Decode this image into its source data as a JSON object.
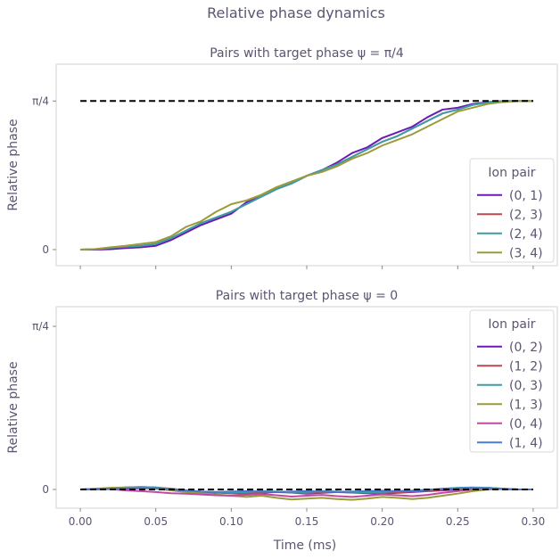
{
  "figure": {
    "suptitle": "Relative phase dynamics",
    "xlabel": "Time (ms)"
  },
  "chart_data": [
    {
      "type": "line",
      "title": "Pairs with target phase ψ = π/4",
      "ylabel": "Relative phase",
      "xlim": [
        -0.016,
        0.316
      ],
      "ylim": [
        -0.085,
        0.98
      ],
      "yticks": [
        {
          "value": 0,
          "label": "0"
        },
        {
          "value": 0.7854,
          "label": "π/4"
        }
      ],
      "xticks": [
        0.0,
        0.05,
        0.1,
        0.15,
        0.2,
        0.25,
        0.3
      ],
      "show_xticklabels": false,
      "target": {
        "value": 0.7854,
        "x": [
          0.0,
          0.3
        ],
        "style": "dashed",
        "color": "#000000"
      },
      "legend": {
        "title": "Ion pair",
        "position": "lower-right"
      },
      "x": [
        0.0,
        0.01,
        0.02,
        0.03,
        0.04,
        0.05,
        0.06,
        0.07,
        0.08,
        0.09,
        0.1,
        0.11,
        0.12,
        0.13,
        0.14,
        0.15,
        0.16,
        0.17,
        0.18,
        0.19,
        0.2,
        0.21,
        0.22,
        0.23,
        0.24,
        0.25,
        0.26,
        0.27,
        0.28,
        0.29,
        0.3
      ],
      "series": [
        {
          "name": "(0, 1)",
          "color": "#6a1bb5",
          "values": [
            0.0,
            0.0,
            0.002,
            0.008,
            0.012,
            0.02,
            0.05,
            0.09,
            0.13,
            0.16,
            0.19,
            0.25,
            0.28,
            0.32,
            0.35,
            0.39,
            0.42,
            0.46,
            0.51,
            0.54,
            0.59,
            0.62,
            0.65,
            0.7,
            0.74,
            0.75,
            0.77,
            0.78,
            0.785,
            0.785,
            0.785
          ]
        },
        {
          "name": "(2, 3)",
          "color": "#b84a52",
          "values": [
            0.0,
            0.002,
            0.01,
            0.015,
            0.02,
            0.03,
            0.06,
            0.1,
            0.14,
            0.17,
            0.2,
            0.24,
            0.28,
            0.32,
            0.35,
            0.39,
            0.42,
            0.45,
            0.49,
            0.53,
            0.57,
            0.6,
            0.64,
            0.68,
            0.72,
            0.74,
            0.765,
            0.778,
            0.785,
            0.785,
            0.785
          ]
        },
        {
          "name": "(2, 4)",
          "color": "#3a9ea8",
          "values": [
            0.0,
            0.002,
            0.01,
            0.015,
            0.02,
            0.03,
            0.06,
            0.1,
            0.14,
            0.17,
            0.2,
            0.24,
            0.28,
            0.32,
            0.35,
            0.39,
            0.42,
            0.45,
            0.49,
            0.53,
            0.57,
            0.6,
            0.64,
            0.68,
            0.72,
            0.74,
            0.765,
            0.778,
            0.785,
            0.785,
            0.785
          ]
        },
        {
          "name": "(3, 4)",
          "color": "#9b9b3a",
          "values": [
            0.0,
            0.003,
            0.012,
            0.02,
            0.03,
            0.04,
            0.07,
            0.12,
            0.15,
            0.2,
            0.24,
            0.26,
            0.29,
            0.33,
            0.36,
            0.39,
            0.41,
            0.44,
            0.48,
            0.51,
            0.55,
            0.58,
            0.61,
            0.65,
            0.69,
            0.73,
            0.75,
            0.77,
            0.78,
            0.785,
            0.785
          ]
        }
      ]
    },
    {
      "type": "line",
      "title": "Pairs with target phase ψ = 0",
      "ylabel": "Relative phase",
      "xlim": [
        -0.016,
        0.316
      ],
      "ylim": [
        -0.09,
        0.88
      ],
      "yticks": [
        {
          "value": 0,
          "label": "0"
        },
        {
          "value": 0.7854,
          "label": "π/4"
        }
      ],
      "xticks": [
        0.0,
        0.05,
        0.1,
        0.15,
        0.2,
        0.25,
        0.3
      ],
      "xticklabels": [
        "0.00",
        "0.05",
        "0.10",
        "0.15",
        "0.20",
        "0.25",
        "0.30"
      ],
      "show_xticklabels": true,
      "target": {
        "value": 0.0,
        "x": [
          0.0,
          0.3
        ],
        "style": "dashed",
        "color": "#000000"
      },
      "legend": {
        "title": "Ion pair",
        "position": "upper-right"
      },
      "x": [
        0.0,
        0.01,
        0.02,
        0.03,
        0.04,
        0.05,
        0.06,
        0.07,
        0.08,
        0.09,
        0.1,
        0.11,
        0.12,
        0.13,
        0.14,
        0.15,
        0.16,
        0.17,
        0.18,
        0.19,
        0.2,
        0.21,
        0.22,
        0.23,
        0.24,
        0.25,
        0.26,
        0.27,
        0.28,
        0.29,
        0.3
      ],
      "series": [
        {
          "name": "(0, 2)",
          "color": "#6a1bb5",
          "values": [
            0.0,
            0.0,
            0.002,
            0.004,
            0.006,
            0.005,
            0.0,
            -0.008,
            -0.012,
            -0.015,
            -0.018,
            -0.02,
            -0.016,
            -0.012,
            -0.015,
            -0.02,
            -0.016,
            -0.012,
            -0.015,
            -0.018,
            -0.02,
            -0.016,
            -0.012,
            -0.008,
            -0.004,
            0.0,
            0.004,
            0.006,
            0.003,
            0.0,
            0.0
          ]
        },
        {
          "name": "(1, 2)",
          "color": "#b84a52",
          "values": [
            0.0,
            0.002,
            0.006,
            0.01,
            0.012,
            0.01,
            0.004,
            -0.004,
            -0.01,
            -0.014,
            -0.018,
            -0.02,
            -0.014,
            -0.01,
            -0.014,
            -0.018,
            -0.014,
            -0.01,
            -0.014,
            -0.016,
            -0.018,
            -0.014,
            -0.01,
            -0.006,
            -0.002,
            0.002,
            0.006,
            0.008,
            0.004,
            0.0,
            0.0
          ]
        },
        {
          "name": "(0, 3)",
          "color": "#3a9ea8",
          "values": [
            0.0,
            0.0,
            0.004,
            0.008,
            0.012,
            0.01,
            0.002,
            -0.006,
            -0.01,
            -0.012,
            -0.014,
            -0.012,
            -0.008,
            -0.01,
            -0.012,
            -0.012,
            -0.008,
            -0.01,
            -0.012,
            -0.014,
            -0.012,
            -0.008,
            -0.006,
            -0.002,
            0.004,
            0.008,
            0.01,
            0.008,
            0.004,
            0.0,
            0.0
          ]
        },
        {
          "name": "(1, 3)",
          "color": "#9b9b3a",
          "values": [
            0.0,
            0.004,
            0.008,
            0.01,
            0.008,
            0.004,
            -0.004,
            -0.012,
            -0.018,
            -0.024,
            -0.03,
            -0.036,
            -0.03,
            -0.04,
            -0.048,
            -0.044,
            -0.04,
            -0.046,
            -0.05,
            -0.044,
            -0.036,
            -0.04,
            -0.046,
            -0.04,
            -0.03,
            -0.02,
            -0.008,
            0.0,
            0.002,
            0.0,
            0.0
          ]
        },
        {
          "name": "(0, 4)",
          "color": "#c04aa0",
          "values": [
            0.0,
            0.0,
            0.002,
            -0.004,
            -0.008,
            -0.012,
            -0.018,
            -0.02,
            -0.024,
            -0.028,
            -0.03,
            -0.026,
            -0.022,
            -0.028,
            -0.034,
            -0.03,
            -0.026,
            -0.032,
            -0.036,
            -0.03,
            -0.024,
            -0.028,
            -0.032,
            -0.026,
            -0.016,
            -0.008,
            0.0,
            0.004,
            0.002,
            0.0,
            0.0
          ]
        },
        {
          "name": "(1, 4)",
          "color": "#4a7bd0",
          "values": [
            0.0,
            0.002,
            0.004,
            0.006,
            0.008,
            0.006,
            0.0,
            -0.006,
            -0.01,
            -0.012,
            -0.01,
            -0.008,
            -0.01,
            -0.012,
            -0.01,
            -0.008,
            -0.01,
            -0.012,
            -0.01,
            -0.008,
            -0.006,
            -0.008,
            -0.006,
            -0.002,
            0.002,
            0.006,
            0.008,
            0.006,
            0.002,
            0.0,
            0.0
          ]
        }
      ]
    }
  ]
}
